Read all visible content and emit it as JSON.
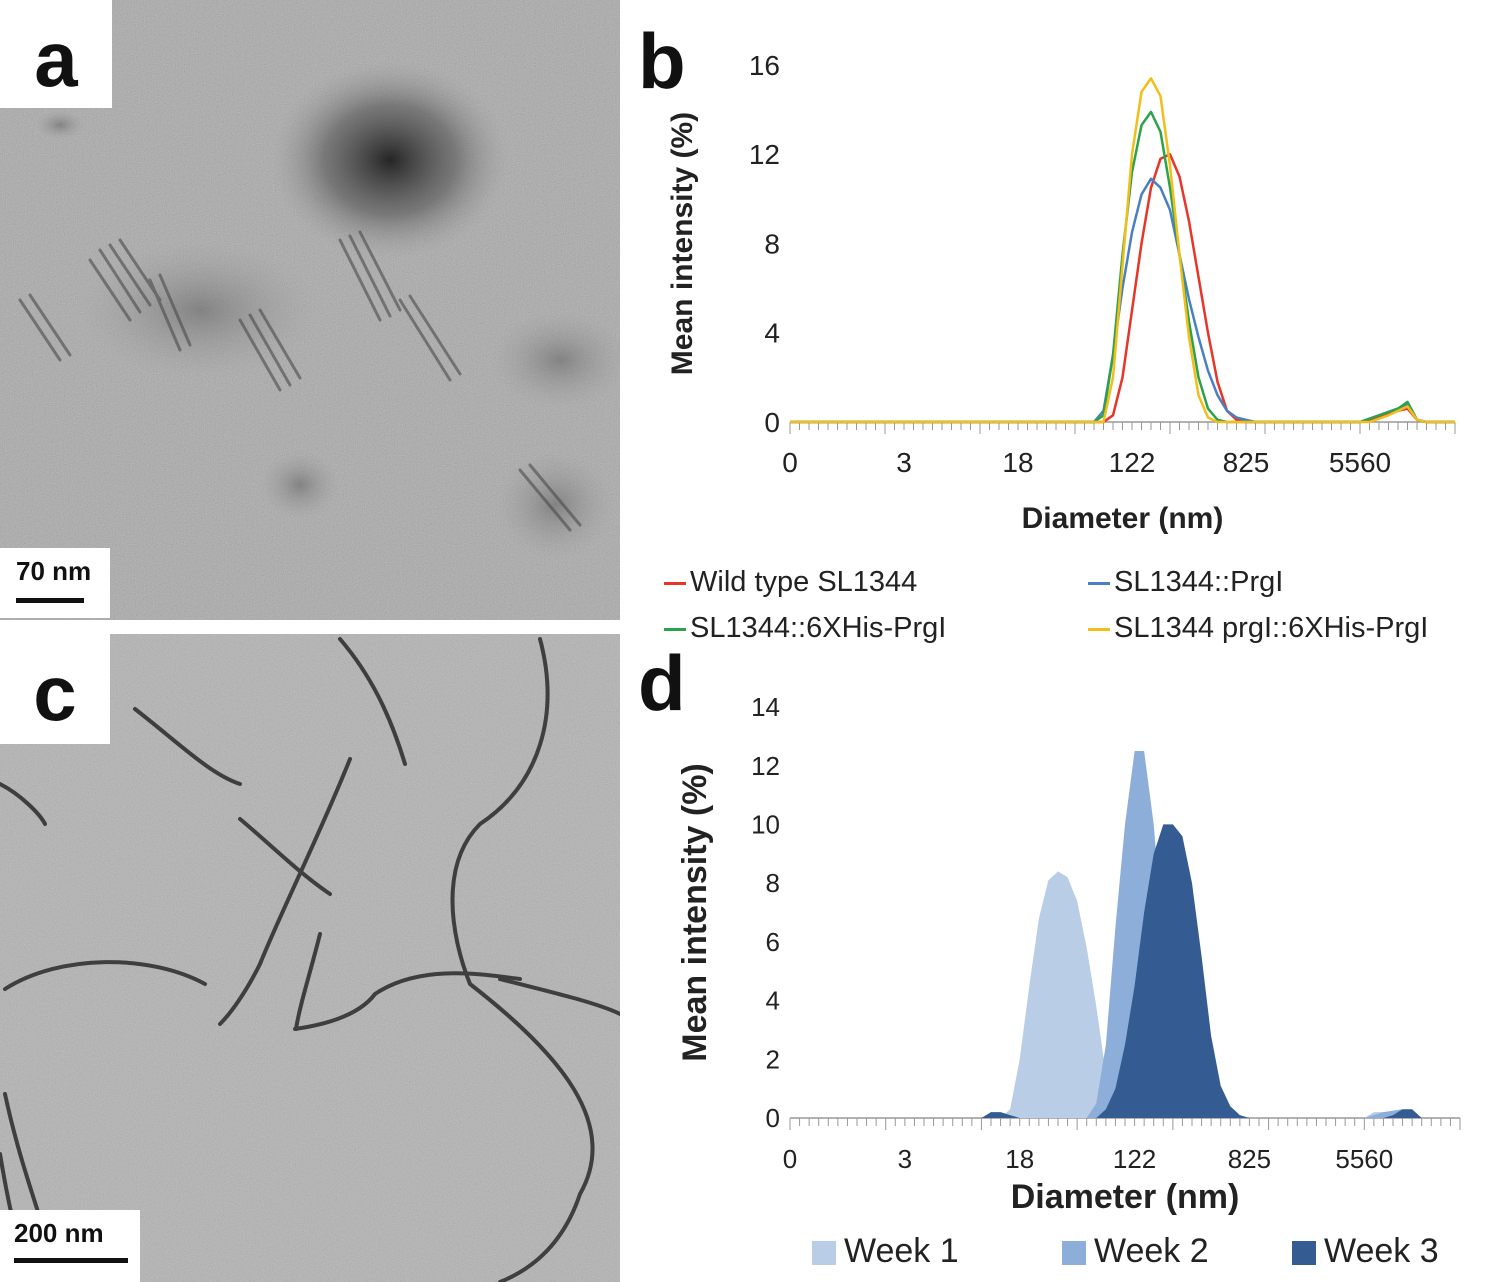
{
  "panels": {
    "a": {
      "letter": "a",
      "scale_label": "70 nm"
    },
    "c": {
      "letter": "c",
      "scale_label": "200 nm"
    },
    "b_letter": "b",
    "d_letter": "d"
  },
  "chart_data": [
    {
      "panel": "b",
      "type": "line",
      "xlabel": "Diameter (nm)",
      "ylabel": "Mean intensity (%)",
      "x_tick_labels": [
        "0",
        "3",
        "18",
        "122",
        "825",
        "5560"
      ],
      "ylim": [
        0,
        16
      ],
      "yticks": [
        0,
        4,
        8,
        12,
        16
      ],
      "x_scale": "log (bin index 0–70, labels every 10 bins)",
      "legend_position": "below",
      "series": [
        {
          "name": "Wild type SL1344",
          "color": "#e8352a",
          "points": [
            [
              0,
              0
            ],
            [
              33,
              0
            ],
            [
              34,
              0.3
            ],
            [
              35,
              2
            ],
            [
              36,
              5
            ],
            [
              37,
              8
            ],
            [
              38,
              10.5
            ],
            [
              39,
              11.8
            ],
            [
              40,
              12
            ],
            [
              41,
              11
            ],
            [
              42,
              9
            ],
            [
              43,
              6.5
            ],
            [
              44,
              4
            ],
            [
              45,
              1.8
            ],
            [
              46,
              0.5
            ],
            [
              47,
              0.1
            ],
            [
              48,
              0
            ],
            [
              60,
              0
            ],
            [
              62,
              0.2
            ],
            [
              64,
              0.5
            ],
            [
              65,
              0.6
            ],
            [
              66,
              0.1
            ],
            [
              67,
              0
            ],
            [
              70,
              0
            ]
          ]
        },
        {
          "name": "SL1344::PrgI",
          "color": "#4a7fc1",
          "points": [
            [
              0,
              0
            ],
            [
              32,
              0
            ],
            [
              33,
              0.5
            ],
            [
              34,
              3
            ],
            [
              35,
              6
            ],
            [
              36,
              8.5
            ],
            [
              37,
              10.2
            ],
            [
              38,
              10.9
            ],
            [
              39,
              10.5
            ],
            [
              40,
              9.5
            ],
            [
              41,
              7.5
            ],
            [
              42,
              5.5
            ],
            [
              43,
              3.8
            ],
            [
              44,
              2.3
            ],
            [
              45,
              1.2
            ],
            [
              46,
              0.5
            ],
            [
              47,
              0.2
            ],
            [
              48,
              0.1
            ],
            [
              49,
              0
            ],
            [
              60,
              0
            ],
            [
              62,
              0.3
            ],
            [
              64,
              0.6
            ],
            [
              65,
              0.8
            ],
            [
              66,
              0.1
            ],
            [
              67,
              0
            ],
            [
              70,
              0
            ]
          ]
        },
        {
          "name": "SL1344::6XHis-PrgI",
          "color": "#2ca24a",
          "points": [
            [
              0,
              0
            ],
            [
              32,
              0
            ],
            [
              33,
              0.3
            ],
            [
              34,
              3
            ],
            [
              35,
              7.5
            ],
            [
              36,
              11.2
            ],
            [
              37,
              13.3
            ],
            [
              38,
              13.9
            ],
            [
              39,
              13
            ],
            [
              40,
              10.5
            ],
            [
              41,
              7.5
            ],
            [
              42,
              4.5
            ],
            [
              43,
              2
            ],
            [
              44,
              0.6
            ],
            [
              45,
              0.1
            ],
            [
              46,
              0
            ],
            [
              60,
              0
            ],
            [
              62,
              0.3
            ],
            [
              64,
              0.6
            ],
            [
              65,
              0.9
            ],
            [
              66,
              0.1
            ],
            [
              67,
              0
            ],
            [
              70,
              0
            ]
          ]
        },
        {
          "name": "SL1344 prgI::6XHis-PrgI",
          "color": "#f3bd1a",
          "points": [
            [
              0,
              0
            ],
            [
              33,
              0
            ],
            [
              34,
              2
            ],
            [
              35,
              7
            ],
            [
              36,
              12
            ],
            [
              37,
              14.8
            ],
            [
              38,
              15.4
            ],
            [
              39,
              14.6
            ],
            [
              40,
              11.5
            ],
            [
              41,
              7.5
            ],
            [
              42,
              3.8
            ],
            [
              43,
              1.2
            ],
            [
              44,
              0.2
            ],
            [
              45,
              0
            ],
            [
              61,
              0
            ],
            [
              63,
              0.3
            ],
            [
              65,
              0.7
            ],
            [
              66,
              0.1
            ],
            [
              67,
              0
            ],
            [
              70,
              0
            ]
          ]
        }
      ]
    },
    {
      "panel": "d",
      "type": "area",
      "xlabel": "Diameter (nm)",
      "ylabel": "Mean intensity (%)",
      "x_tick_labels": [
        "0",
        "3",
        "18",
        "122",
        "825",
        "5560"
      ],
      "ylim": [
        0,
        14
      ],
      "yticks": [
        0,
        2,
        4,
        6,
        8,
        10,
        12,
        14
      ],
      "x_scale": "log (bin index 0–70, labels every 10 bins)",
      "legend_position": "bottom",
      "series": [
        {
          "name": "Week 1",
          "color": "#b9cde7",
          "points": [
            [
              0,
              0
            ],
            [
              22,
              0
            ],
            [
              23,
              0.3
            ],
            [
              24,
              2
            ],
            [
              25,
              4.5
            ],
            [
              26,
              6.8
            ],
            [
              27,
              8.1
            ],
            [
              28,
              8.4
            ],
            [
              29,
              8.2
            ],
            [
              30,
              7.4
            ],
            [
              31,
              5.8
            ],
            [
              32,
              3.8
            ],
            [
              33,
              1.5
            ],
            [
              34,
              0.4
            ],
            [
              35,
              0
            ],
            [
              60,
              0
            ],
            [
              61,
              0.2
            ],
            [
              62,
              0.2
            ],
            [
              63,
              0.1
            ],
            [
              64,
              0
            ],
            [
              70,
              0
            ]
          ]
        },
        {
          "name": "Week 2",
          "color": "#8caed9",
          "points": [
            [
              0,
              0
            ],
            [
              31,
              0
            ],
            [
              32,
              0.5
            ],
            [
              33,
              2.5
            ],
            [
              34,
              6.5
            ],
            [
              35,
              10
            ],
            [
              36,
              12.5
            ],
            [
              37,
              12.5
            ],
            [
              38,
              10
            ],
            [
              39,
              6
            ],
            [
              40,
              3
            ],
            [
              41,
              1.2
            ],
            [
              42,
              0.3
            ],
            [
              43,
              0
            ],
            [
              60,
              0
            ],
            [
              62,
              0.2
            ],
            [
              64,
              0.3
            ],
            [
              65,
              0.1
            ],
            [
              66,
              0
            ],
            [
              70,
              0
            ]
          ]
        },
        {
          "name": "Week 3",
          "color": "#345c93",
          "points": [
            [
              0,
              0
            ],
            [
              20,
              0
            ],
            [
              21,
              0.2
            ],
            [
              22,
              0.2
            ],
            [
              23,
              0.1
            ],
            [
              24,
              0
            ],
            [
              32,
              0
            ],
            [
              33,
              0.3
            ],
            [
              34,
              1
            ],
            [
              35,
              2.5
            ],
            [
              36,
              4.5
            ],
            [
              37,
              7
            ],
            [
              38,
              9
            ],
            [
              39,
              10
            ],
            [
              40,
              10
            ],
            [
              41,
              9.6
            ],
            [
              42,
              8
            ],
            [
              43,
              5.5
            ],
            [
              44,
              2.8
            ],
            [
              45,
              1.1
            ],
            [
              46,
              0.4
            ],
            [
              47,
              0.1
            ],
            [
              48,
              0
            ],
            [
              62,
              0
            ],
            [
              63,
              0.1
            ],
            [
              64,
              0.3
            ],
            [
              65,
              0.3
            ],
            [
              66,
              0
            ],
            [
              70,
              0
            ]
          ]
        }
      ]
    }
  ]
}
